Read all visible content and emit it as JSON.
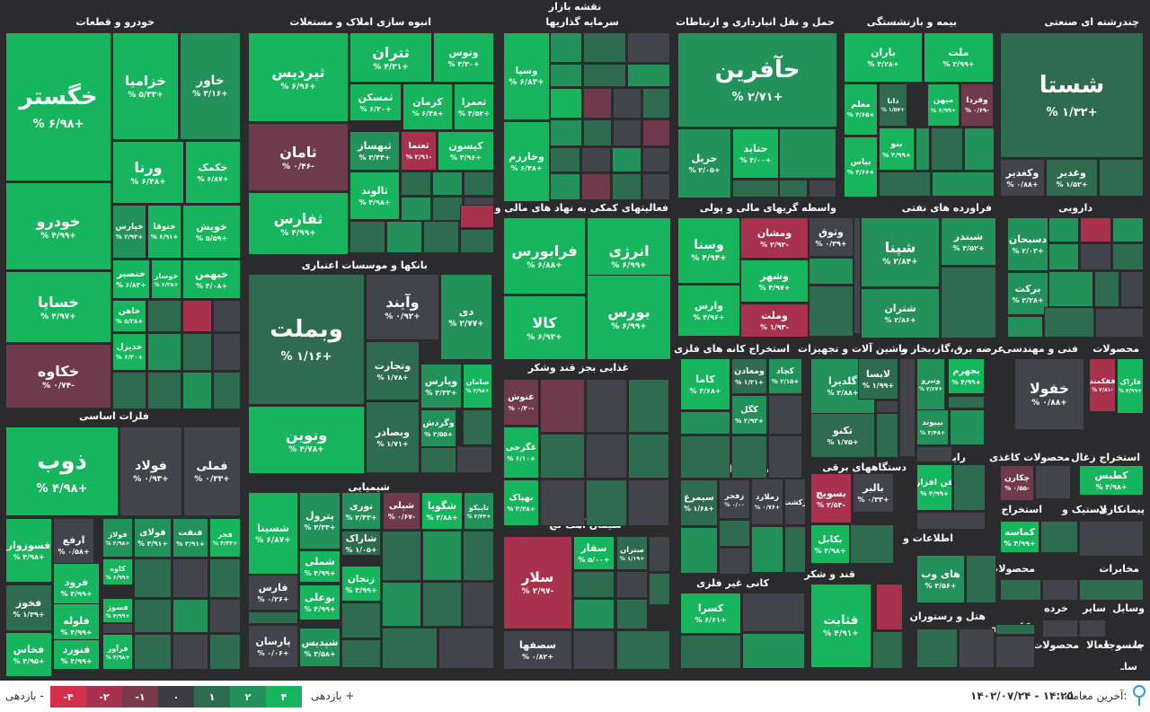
{
  "header": {
    "title": "نقشه بازار"
  },
  "legend": {
    "neg_label": "بازدهی -",
    "pos_label": "بازدهی +",
    "levels": [
      {
        "label": "-۴",
        "color": "#d32f4b"
      },
      {
        "label": "-۲",
        "color": "#a8324e"
      },
      {
        "label": "-۱",
        "color": "#7a3a4e"
      },
      {
        "label": "۰",
        "color": "#3d3d45"
      },
      {
        "label": "۱",
        "color": "#2f6b4e"
      },
      {
        "label": "۲",
        "color": "#22925a"
      },
      {
        "label": "۴",
        "color": "#16b55e"
      }
    ]
  },
  "footer": {
    "last_trade_label": "آخرین معامله:",
    "last_trade_value": "۱۴۰۲/۰۷/۲۴ - ۱۴:۲۵"
  },
  "chart_data": {
    "type": "treemap",
    "title": "نقشه بازار",
    "sectors": [
      {
        "name": "خودرو و قطعات"
      },
      {
        "name": "انبوه سازی املاک و مستغلات"
      },
      {
        "name": "سرمایه گذاریها"
      },
      {
        "name": "حمل و نقل انبارداری و ارتباطات"
      },
      {
        "name": "بیمه و بازنشستگی"
      },
      {
        "name": "چندرشته ای صنعتی"
      },
      {
        "name": "فعالیتهای کمکی به نهاد های مالی واسط"
      },
      {
        "name": "واسطه گریهای مالی و پولی"
      },
      {
        "name": "فراورده های نفتی"
      },
      {
        "name": "دارویی"
      },
      {
        "name": "بانکها و موسسات اعتباری"
      },
      {
        "name": "فلزات اساسی"
      },
      {
        "name": "غذایی بجز قند وشکر"
      },
      {
        "name": "استخراج کانه های فلزی"
      },
      {
        "name": "ماشین آلات و تجهیزات"
      },
      {
        "name": "عرضه برق،گاز،بخار و"
      },
      {
        "name": "فنی و مهندسی"
      },
      {
        "name": "محصولات"
      },
      {
        "name": "شیمیایی"
      },
      {
        "name": "سیمان آهک گچ"
      },
      {
        "name": "خدمات وابسته"
      },
      {
        "name": "زراعت و"
      },
      {
        "name": "دستگاههای برقی"
      },
      {
        "name": "رایانه"
      },
      {
        "name": "محصولات کاغذی"
      },
      {
        "name": "استخراج زغال"
      },
      {
        "name": "کانی غیر فلزی"
      },
      {
        "name": "قند و شکر"
      },
      {
        "name": "اطلاعات و"
      },
      {
        "name": "هتل و رستوران"
      },
      {
        "name": "استخراج"
      },
      {
        "name": "لاستیک و"
      },
      {
        "name": "پیمانکاری"
      },
      {
        "name": "محصولات "
      },
      {
        "name": "مخابرات"
      },
      {
        "name": "کاشی و"
      },
      {
        "name": "خرده"
      },
      {
        "name": "سایر"
      },
      {
        "name": "وسایل"
      },
      {
        "name": "فعالا"
      },
      {
        "name": "منسوجا"
      },
      {
        "name": "محصولات  "
      },
      {
        "name": "چا"
      },
      {
        "name": "ساـ"
      }
    ],
    "tiles": [
      {
        "sector": "خودرو و قطعات",
        "name": "خگستر",
        "pct": "% ۶/۹۸+",
        "value": 6.98
      },
      {
        "sector": "خودرو و قطعات",
        "name": "خزامیا",
        "pct": "% ۵/۳۳+",
        "value": 5.33
      },
      {
        "sector": "خودرو و قطعات",
        "name": "خاور",
        "pct": "% ۳/۱۶+",
        "value": 3.16
      },
      {
        "sector": "خودرو و قطعات",
        "name": "ورنا",
        "pct": "% ۶/۴۸+",
        "value": 6.48
      },
      {
        "sector": "خودرو و قطعات",
        "name": "خکمک",
        "pct": "% ۶/۸۷+",
        "value": 6.87
      },
      {
        "sector": "خودرو و قطعات",
        "name": "خودرو",
        "pct": "% ۴/۹۹+",
        "value": 4.99
      },
      {
        "sector": "خودرو و قطعات",
        "name": "خپارس",
        "pct": "% ۲/۹۲+",
        "value": 2.92
      },
      {
        "sector": "خودرو و قطعات",
        "name": "ختوقا",
        "pct": "% ۶/۹۱+",
        "value": 6.91
      },
      {
        "sector": "خودرو و قطعات",
        "name": "خویش",
        "pct": "% ۵/۵۹+",
        "value": 5.59
      },
      {
        "sector": "خودرو و قطعات",
        "name": "خساپا",
        "pct": "% ۴/۹۷+",
        "value": 4.97
      },
      {
        "sector": "خودرو و قطعات",
        "name": "خنصیر",
        "pct": "% ۶/۸۳+",
        "value": 6.83
      },
      {
        "sector": "خودرو و قطعات",
        "name": "خوساز",
        "pct": "% ۶/۳۸+",
        "value": 6.38
      },
      {
        "sector": "خودرو و قطعات",
        "name": "خبهمن",
        "pct": "% ۴/۰۸+",
        "value": 4.08
      },
      {
        "sector": "خودرو و قطعات",
        "name": "خاهن",
        "pct": "% ۵/۲۸+",
        "value": 5.28
      },
      {
        "sector": "خودرو و قطعات",
        "name": "خدیزل",
        "pct": "% ۶/۲۰+",
        "value": 6.2
      },
      {
        "sector": "خودرو و قطعات",
        "name": "خکاوه",
        "pct": "% ۰/۷۴-",
        "value": -0.74
      },
      {
        "sector": "انبوه سازی املاک و مستغلات",
        "name": "ثپردیس",
        "pct": "% ۶/۹۶+",
        "value": 6.96
      },
      {
        "sector": "انبوه سازی املاک و مستغلات",
        "name": "ثتران",
        "pct": "% ۴/۳۱+",
        "value": 4.31
      },
      {
        "sector": "انبوه سازی املاک و مستغلات",
        "name": "وتوس",
        "pct": "% ۴/۳۰+",
        "value": 4.3
      },
      {
        "sector": "انبوه سازی املاک و مستغلات",
        "name": "ثمسکن",
        "pct": "% ۶/۲۰+",
        "value": 6.2
      },
      {
        "sector": "انبوه سازی املاک و مستغلات",
        "name": "کرمان",
        "pct": "% ۶/۴۸+",
        "value": 6.48
      },
      {
        "sector": "انبوه سازی املاک و مستغلات",
        "name": "ثعمرا",
        "pct": "% ۴/۵۲+",
        "value": 4.52
      },
      {
        "sector": "انبوه سازی املاک و مستغلات",
        "name": "ثامان",
        "pct": "% ۰/۴۶-",
        "value": -0.46
      },
      {
        "sector": "انبوه سازی املاک و مستغلات",
        "name": "ثبهساز",
        "pct": "% ۳/۴۴+",
        "value": 3.44
      },
      {
        "sector": "انبوه سازی املاک و مستغلات",
        "name": "ثعتما",
        "pct": "% ۲/۹۱-",
        "value": -2.91
      },
      {
        "sector": "انبوه سازی املاک و مستغلات",
        "name": "کیسون",
        "pct": "% ۴/۹۶+",
        "value": 4.96
      },
      {
        "sector": "انبوه سازی املاک و مستغلات",
        "name": "ثالوند",
        "pct": "% ۴/۹۸+",
        "value": 4.98
      },
      {
        "sector": "انبوه سازی املاک و مستغلات",
        "name": "ثفارس",
        "pct": "% ۴/۹۹+",
        "value": 4.99
      },
      {
        "sector": "سرمایه گذاریها",
        "name": "وسپا",
        "pct": "% ۶/۸۳+",
        "value": 6.83
      },
      {
        "sector": "سرمایه گذاریها",
        "name": "وخارزم",
        "pct": "% ۶/۴۸+",
        "value": 6.48
      },
      {
        "sector": "حمل و نقل انبارداری و ارتباطات",
        "name": "حآفرین",
        "pct": "% ۲/۷۱+",
        "value": 2.71
      },
      {
        "sector": "حمل و نقل انبارداری و ارتباطات",
        "name": "حریل",
        "pct": "% ۲/۰۵+",
        "value": 2.05
      },
      {
        "sector": "حمل و نقل انبارداری و ارتباطات",
        "name": "حتاید",
        "pct": "% ۴/۰۰+",
        "value": 4.0
      },
      {
        "sector": "بیمه و بازنشستگی",
        "name": "باران",
        "pct": "% ۴/۲۸+",
        "value": 4.28
      },
      {
        "sector": "بیمه و بازنشستگی",
        "name": "ملت",
        "pct": "% ۴/۹۹+",
        "value": 4.99
      },
      {
        "sector": "بیمه و بازنشستگی",
        "name": "معلم",
        "pct": "% ۴/۶۵+",
        "value": 4.65
      },
      {
        "sector": "بیمه و بازنشستگی",
        "name": "دانا",
        "pct": "% ۱/۵۷+",
        "value": 1.57
      },
      {
        "sector": "بیمه و بازنشستگی",
        "name": "میهن",
        "pct": "% ۶/۹۹+",
        "value": 6.99
      },
      {
        "sector": "بیمه و بازنشستگی",
        "name": "وفردا",
        "pct": "% ۰/۶۹-",
        "value": -0.69
      },
      {
        "sector": "بیمه و بازنشستگی",
        "name": "بنو",
        "pct": "% ۴/۹۹+",
        "value": 4.99
      },
      {
        "sector": "بیمه و بازنشستگی",
        "name": "بپاس",
        "pct": "% ۴/۶۶+",
        "value": 4.66
      },
      {
        "sector": "چندرشته ای صنعتی",
        "name": "شستا",
        "pct": "% ۱/۳۲+",
        "value": 1.32
      },
      {
        "sector": "چندرشته ای صنعتی",
        "name": "وکغدیر",
        "pct": "% ۰/۸۸+",
        "value": 0.88
      },
      {
        "sector": "چندرشته ای صنعتی",
        "name": "وغدیر",
        "pct": "% ۱/۵۲+",
        "value": 1.52
      },
      {
        "sector": "فعالیتهای کمکی به نهاد های مالی واسط",
        "name": "فرابورس",
        "pct": "% ۶/۸۸+",
        "value": 6.88
      },
      {
        "sector": "فعالیتهای کمکی به نهاد های مالی واسط",
        "name": "انرژی",
        "pct": "% ۶/۹۹+",
        "value": 6.99
      },
      {
        "sector": "فعالیتهای کمکی به نهاد های مالی واسط",
        "name": "کالا",
        "pct": "% ۶/۹۳+",
        "value": 6.93
      },
      {
        "sector": "فعالیتهای کمکی به نهاد های مالی واسط",
        "name": "بورس",
        "pct": "% ۶/۹۹+",
        "value": 6.99
      },
      {
        "sector": "واسطه گریهای مالی و پولی",
        "name": "وسنا",
        "pct": "% ۴/۹۴+",
        "value": 4.94
      },
      {
        "sector": "واسطه گریهای مالی و پولی",
        "name": "ومشان",
        "pct": "% ۲/۹۲-",
        "value": -2.92
      },
      {
        "sector": "واسطه گریهای مالی و پولی",
        "name": "وثوق",
        "pct": "% ۰/۳۹+",
        "value": 0.39
      },
      {
        "sector": "واسطه گریهای مالی و پولی",
        "name": "وشهر",
        "pct": "% ۴/۹۷+",
        "value": 4.97
      },
      {
        "sector": "واسطه گریهای مالی و پولی",
        "name": "وارس",
        "pct": "% ۴/۹۶+",
        "value": 4.96
      },
      {
        "sector": "واسطه گریهای مالی و پولی",
        "name": "وملت",
        "pct": "% ۱/۹۳-",
        "value": -1.93
      },
      {
        "sector": "فراورده های نفتی",
        "name": "شپنا",
        "pct": "% ۲/۸۴+",
        "value": 2.84
      },
      {
        "sector": "فراورده های نفتی",
        "name": "شبندر",
        "pct": "% ۳/۵۲+",
        "value": 3.52
      },
      {
        "sector": "فراورده های نفتی",
        "name": "شتران",
        "pct": "% ۲/۸۶+",
        "value": 2.86
      },
      {
        "sector": "دارویی",
        "name": "دسبحان",
        "pct": "% ۲/۰۳+",
        "value": 2.03
      },
      {
        "sector": "دارویی",
        "name": "برکت",
        "pct": "% ۲/۲۸+",
        "value": 2.28
      },
      {
        "sector": "بانکها و موسسات اعتباری",
        "name": "وبملت",
        "pct": "% ۱/۱۶+",
        "value": 1.16
      },
      {
        "sector": "بانکها و موسسات اعتباری",
        "name": "وآیند",
        "pct": "% ۰/۹۲+",
        "value": 0.92
      },
      {
        "sector": "بانکها و موسسات اعتباری",
        "name": "دی",
        "pct": "% ۲/۷۷+",
        "value": 2.77
      },
      {
        "sector": "بانکها و موسسات اعتباری",
        "name": "وتجارت",
        "pct": "% ۱/۷۸+",
        "value": 1.78
      },
      {
        "sector": "بانکها و موسسات اعتباری",
        "name": "وپارس",
        "pct": "% ۳/۳۳+",
        "value": 3.33
      },
      {
        "sector": "بانکها و موسسات اعتباری",
        "name": "سامان",
        "pct": "% ۴/۹۸+",
        "value": 4.98
      },
      {
        "sector": "بانکها و موسسات اعتباری",
        "name": "وگردش",
        "pct": "% ۳/۵۵+",
        "value": 3.55
      },
      {
        "sector": "بانکها و موسسات اعتباری",
        "name": "ونوین",
        "pct": "% ۴/۷۸+",
        "value": 4.78
      },
      {
        "sector": "بانکها و موسسات اعتباری",
        "name": "وبصادر",
        "pct": "% ۱/۷۱+",
        "value": 1.71
      },
      {
        "sector": "فلزات اساسی",
        "name": "ذوب",
        "pct": "% ۴/۹۸+",
        "value": 4.98
      },
      {
        "sector": "فلزات اساسی",
        "name": "فولاد",
        "pct": "% ۰/۹۳+",
        "value": 0.93
      },
      {
        "sector": "فلزات اساسی",
        "name": "فملی",
        "pct": "% ۰/۳۳+",
        "value": 0.33
      },
      {
        "sector": "فلزات اساسی",
        "name": "فسوزوار",
        "pct": "% ۴/۹۸+",
        "value": 4.98
      },
      {
        "sector": "فلزات اساسی",
        "name": "ارفع",
        "pct": "% ۰/۵۸+",
        "value": 0.58
      },
      {
        "sector": "فلزات اساسی",
        "name": "فولاژ",
        "pct": "% ۲/۹۸+",
        "value": 2.98
      },
      {
        "sector": "فلزات اساسی",
        "name": "فولای",
        "pct": "% ۳/۹۱+",
        "value": 3.91
      },
      {
        "sector": "فلزات اساسی",
        "name": "فنفت",
        "pct": "% ۳/۹۱+",
        "value": 3.91
      },
      {
        "sector": "فلزات اساسی",
        "name": "فجر",
        "pct": "% ۴/۳۳+",
        "value": 4.33
      },
      {
        "sector": "فلزات اساسی",
        "name": "فرود",
        "pct": "% ۴/۹۹+",
        "value": 4.99
      },
      {
        "sector": "فلزات اساسی",
        "name": "کاوه",
        "pct": "% ۶/۹۹+",
        "value": 6.99
      },
      {
        "sector": "فلزات اساسی",
        "name": "فخوز",
        "pct": "% ۱/۳۹+",
        "value": 1.39
      },
      {
        "sector": "فلزات اساسی",
        "name": "فسوژ",
        "pct": "% ۴/۹۹+",
        "value": 4.99
      },
      {
        "sector": "فلزات اساسی",
        "name": "فلوله",
        "pct": "% ۴/۹۹+",
        "value": 4.99
      },
      {
        "sector": "فلزات اساسی",
        "name": "فخاس",
        "pct": "% ۴/۹۵+",
        "value": 4.95
      },
      {
        "sector": "فلزات اساسی",
        "name": "فنورد",
        "pct": "% ۴/۹۹+",
        "value": 4.99
      },
      {
        "sector": "فلزات اساسی",
        "name": "فرآور",
        "pct": "% ۴/۹۸+",
        "value": 4.98
      },
      {
        "sector": "غذایی بجز قند وشکر",
        "name": "غنوش",
        "pct": "% ۰/۴۰-",
        "value": -0.4
      },
      {
        "sector": "غذایی بجز قند وشکر",
        "name": "غگرجی",
        "pct": "% ۶/۱۰+",
        "value": 6.1
      },
      {
        "sector": "غذایی بجز قند وشکر",
        "name": "بهپاک",
        "pct": "% ۴/۴۸+",
        "value": 4.48
      },
      {
        "sector": "استخراج کانه های فلزی",
        "name": "کاما",
        "pct": "% ۴/۶۸+",
        "value": 4.68
      },
      {
        "sector": "استخراج کانه های فلزی",
        "name": "ومعادن",
        "pct": "% ۱/۲۱+",
        "value": 1.21
      },
      {
        "sector": "استخراج کانه های فلزی",
        "name": "کچاد",
        "pct": "% ۲/۱۵+",
        "value": 2.15
      },
      {
        "sector": "استخراج کانه های فلزی",
        "name": "کگل",
        "pct": "% ۲/۹۳+",
        "value": 2.93
      },
      {
        "sector": "ماشین آلات و تجهیزات",
        "name": "گلدیرا",
        "pct": "% ۲/۸۸+",
        "value": 2.88
      },
      {
        "sector": "ماشین آلات و تجهیزات",
        "name": "لابسا",
        "pct": "% ۱/۹۹+",
        "value": 1.99
      },
      {
        "sector": "ماشین آلات و تجهیزات",
        "name": "تکنو",
        "pct": "% ۱/۷۵+",
        "value": 1.75
      },
      {
        "sector": "عرضه برق،گاز،بخار و",
        "name": "ونیرو",
        "pct": "% ۲/۶۷+",
        "value": 2.67
      },
      {
        "sector": "عرضه برق،گاز،بخار و",
        "name": "بجهرم",
        "pct": "% ۴/۹۹+",
        "value": 4.99
      },
      {
        "sector": "عرضه برق،گاز،بخار و",
        "name": "بپیوند",
        "pct": "% ۳/۴۸+",
        "value": 3.48
      },
      {
        "sector": "فنی و مهندسی",
        "name": "خفولا",
        "pct": "% ۰/۸۸+",
        "value": 0.88
      },
      {
        "sector": "محصولات",
        "name": "فقکمند",
        "pct": "% ۲/۸۱-",
        "value": -2.81
      },
      {
        "sector": "محصولات",
        "name": "فاراک",
        "pct": "% ۴/۹۹+",
        "value": 4.99
      },
      {
        "sector": "شیمیایی",
        "name": "شسینا",
        "pct": "% ۶/۸۷+",
        "value": 6.87
      },
      {
        "sector": "شیمیایی",
        "name": "پترول",
        "pct": "% ۳/۳۳+",
        "value": 3.33
      },
      {
        "sector": "شیمیایی",
        "name": "نوری",
        "pct": "% ۲/۴۳+",
        "value": 2.43
      },
      {
        "sector": "شیمیایی",
        "name": "شپلی",
        "pct": "% ۰/۶۷-",
        "value": -0.67
      },
      {
        "sector": "شیمیایی",
        "name": "شگویا",
        "pct": "% ۴/۸۸+",
        "value": 4.88
      },
      {
        "sector": "شیمیایی",
        "name": "تاپیکو",
        "pct": "% ۲/۴۴+",
        "value": 2.44
      },
      {
        "sector": "شیمیایی",
        "name": "شملی",
        "pct": "% ۴/۹۹+",
        "value": 4.99
      },
      {
        "sector": "شیمیایی",
        "name": "شاراک",
        "pct": "% ۱/۰۵+",
        "value": 1.05
      },
      {
        "sector": "شیمیایی",
        "name": "زنجان",
        "pct": "% ۴/۹۹+",
        "value": 4.99
      },
      {
        "sector": "شیمیایی",
        "name": "فارس",
        "pct": "% ۰/۲۶+",
        "value": 0.26
      },
      {
        "sector": "شیمیایی",
        "name": "بوعلی",
        "pct": "% ۴/۹۹+",
        "value": 4.99
      },
      {
        "sector": "شیمیایی",
        "name": "پارسان",
        "pct": "% ۰/۰۶+",
        "value": 0.06
      },
      {
        "sector": "شیمیایی",
        "name": "شپدیس",
        "pct": "% ۳/۵۸+",
        "value": 3.58
      },
      {
        "sector": "سیمان آهک گچ",
        "name": "سلار",
        "pct": "% ۲/۹۷-",
        "value": -2.97
      },
      {
        "sector": "سیمان آهک گچ",
        "name": "سفار",
        "pct": "% ۵/۰۰+",
        "value": 5.0
      },
      {
        "sector": "سیمان آهک گچ",
        "name": "ستران",
        "pct": "% ۱/۱۹+",
        "value": 1.19
      },
      {
        "sector": "سیمان آهک گچ",
        "name": "سصفها",
        "pct": "% ۰/۸۲+",
        "value": 0.82
      },
      {
        "sector": "خدمات وابسته",
        "name": "سیمرغ",
        "pct": "% ۱/۶۸+",
        "value": 1.68
      },
      {
        "sector": "خدمات وابسته",
        "name": "زفجر",
        "pct": "% ۰/۰۰",
        "value": 0.0
      },
      {
        "sector": "زراعت و",
        "name": "زملارد",
        "pct": "% ۰/۷۶+",
        "value": 0.76
      },
      {
        "sector": "زراعت و",
        "name": "زکشت",
        "pct": "% ۰/۹۸+",
        "value": 0.98
      },
      {
        "sector": "دستگاههای برقی",
        "name": "بسویچ",
        "pct": "% ۲/۵۴-",
        "value": -2.54
      },
      {
        "sector": "دستگاههای برقی",
        "name": "بالبر",
        "pct": "% ۰/۳۳+",
        "value": 0.33
      },
      {
        "sector": "دستگاههای برقی",
        "name": "بکابل",
        "pct": "% ۴/۹۸+",
        "value": 4.98
      },
      {
        "sector": "رایانه",
        "name": "فن افزار",
        "pct": "% ۴/۹۹+",
        "value": 4.99
      },
      {
        "sector": "محصولات کاغذی",
        "name": "چکارن",
        "pct": "% ۰/۵۵-",
        "value": -0.55
      },
      {
        "sector": "استخراج زغال",
        "name": "کطبس",
        "pct": "% ۴/۹۸+",
        "value": 4.98
      },
      {
        "sector": "کانی غیر فلزی",
        "name": "کسرا",
        "pct": "% ۶/۶۱+",
        "value": 6.61
      },
      {
        "sector": "قند و شکر",
        "name": "قثابت",
        "pct": "% ۴/۹۱+",
        "value": 4.91
      },
      {
        "sector": "اطلاعات و",
        "name": "های وب",
        "pct": "% ۳/۵۶+",
        "value": 3.56
      },
      {
        "sector": "استخراج",
        "name": "کماسه",
        "pct": "% ۴/۹۹+",
        "value": 4.99
      }
    ]
  }
}
